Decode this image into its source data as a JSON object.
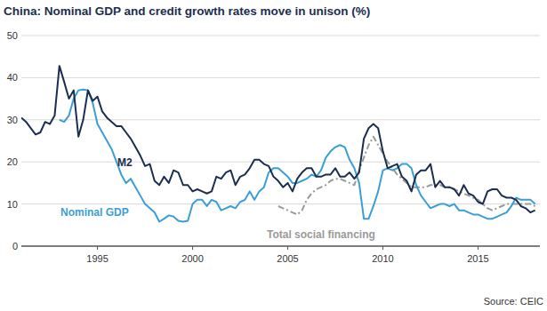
{
  "chart_data": {
    "type": "line",
    "title": "China: Nominal GDP and credit growth rates move in unison (%)",
    "source": "Source: CEIC",
    "x": [
      1991,
      1991.25,
      1991.5,
      1991.75,
      1992,
      1992.25,
      1992.5,
      1992.75,
      1993,
      1993.25,
      1993.5,
      1993.75,
      1994,
      1994.25,
      1994.5,
      1994.75,
      1995,
      1995.25,
      1995.5,
      1995.75,
      1996,
      1996.25,
      1996.5,
      1996.75,
      1997,
      1997.25,
      1997.5,
      1997.75,
      1998,
      1998.25,
      1998.5,
      1998.75,
      1999,
      1999.25,
      1999.5,
      1999.75,
      2000,
      2000.25,
      2000.5,
      2000.75,
      2001,
      2001.25,
      2001.5,
      2001.75,
      2002,
      2002.25,
      2002.5,
      2002.75,
      2003,
      2003.25,
      2003.5,
      2003.75,
      2004,
      2004.25,
      2004.5,
      2004.75,
      2005,
      2005.25,
      2005.5,
      2005.75,
      2006,
      2006.25,
      2006.5,
      2006.75,
      2007,
      2007.25,
      2007.5,
      2007.75,
      2008,
      2008.25,
      2008.5,
      2008.75,
      2009,
      2009.25,
      2009.5,
      2009.75,
      2010,
      2010.25,
      2010.5,
      2010.75,
      2011,
      2011.25,
      2011.5,
      2011.75,
      2012,
      2012.25,
      2012.5,
      2012.75,
      2013,
      2013.25,
      2013.5,
      2013.75,
      2014,
      2014.25,
      2014.5,
      2014.75,
      2015,
      2015.25,
      2015.5,
      2015.75,
      2016,
      2016.25,
      2016.5,
      2016.75,
      2017,
      2017.25,
      2017.5,
      2017.75,
      2018
    ],
    "series": [
      {
        "name": "M2",
        "color": "#1c2e4f",
        "line_style": "solid",
        "values": [
          30.5,
          29.5,
          28,
          26.5,
          27,
          29.5,
          29,
          31,
          42.8,
          39,
          35,
          37,
          26,
          30,
          37,
          34.5,
          35.5,
          32,
          30.5,
          29.5,
          28.5,
          28.5,
          27,
          25.5,
          23.5,
          21.5,
          19,
          19.5,
          15.5,
          14.5,
          16.5,
          15,
          18,
          17.5,
          14.5,
          14.5,
          13,
          13.5,
          13,
          12.5,
          13,
          16.5,
          16,
          17.5,
          18,
          14.5,
          16.5,
          17,
          18.5,
          20.5,
          20.5,
          19.5,
          19,
          16.5,
          15.5,
          14,
          15,
          13,
          16,
          17.5,
          18.5,
          18.5,
          16.5,
          16.5,
          17,
          17,
          18.5,
          16.5,
          16.5,
          17.5,
          16,
          17.5,
          25.5,
          28,
          29,
          28,
          22.5,
          18.5,
          19,
          19.5,
          16.5,
          15.5,
          13,
          17,
          18,
          18,
          19.5,
          14,
          15.5,
          14,
          14,
          13.5,
          12,
          14.5,
          12.5,
          12,
          10.5,
          10,
          13,
          13.5,
          13.5,
          12,
          11.5,
          11.5,
          11,
          9.5,
          9,
          8,
          8.5
        ]
      },
      {
        "name": "Nominal GDP",
        "color": "#3a9fd6",
        "line_style": "solid",
        "values": [
          null,
          null,
          null,
          null,
          null,
          null,
          null,
          null,
          30,
          29.5,
          31,
          35,
          37,
          37.2,
          37,
          34,
          29,
          27,
          25,
          23,
          20,
          17,
          15,
          16,
          14,
          12,
          10,
          9,
          8,
          5.8,
          6.5,
          7.3,
          7,
          6,
          5.8,
          6,
          10,
          11,
          11,
          9.5,
          11,
          10.5,
          8.5,
          9,
          9.5,
          9,
          10.5,
          11,
          13,
          11,
          13,
          14,
          17.5,
          18.5,
          18.5,
          17.5,
          16.5,
          15,
          15,
          15.5,
          16,
          17,
          16.5,
          18,
          21,
          22.5,
          23.5,
          24,
          23.5,
          20.5,
          18.5,
          15,
          6.5,
          6.5,
          9.5,
          13,
          18,
          18.5,
          18,
          18.5,
          19.5,
          19.5,
          18.5,
          14.5,
          12,
          10.5,
          9,
          9.5,
          10,
          10,
          9.5,
          10,
          8.5,
          8.5,
          8,
          7.5,
          7.5,
          7,
          6.5,
          6.5,
          7,
          7.5,
          8,
          9.5,
          11.5,
          11,
          11,
          11,
          10
        ]
      },
      {
        "name": "Total social financing",
        "color": "#9a9a9a",
        "line_style": "dashdot",
        "values": [
          null,
          null,
          null,
          null,
          null,
          null,
          null,
          null,
          null,
          null,
          null,
          null,
          null,
          null,
          null,
          null,
          null,
          null,
          null,
          null,
          null,
          null,
          null,
          null,
          null,
          null,
          null,
          null,
          null,
          null,
          null,
          null,
          null,
          null,
          null,
          null,
          null,
          null,
          null,
          null,
          null,
          null,
          null,
          null,
          null,
          null,
          null,
          null,
          null,
          null,
          null,
          null,
          null,
          null,
          9.5,
          9,
          8.5,
          8,
          7.5,
          8.5,
          11,
          12.5,
          13.5,
          14,
          14.5,
          15.5,
          16,
          16,
          15.5,
          15,
          14.5,
          18,
          21,
          24,
          26,
          24,
          22,
          20,
          18.5,
          17,
          16,
          15,
          14,
          14,
          14,
          14,
          14.5,
          14.5,
          14.5,
          14,
          14,
          13.5,
          13,
          12.5,
          12,
          11.5,
          11,
          10,
          9,
          8.5,
          9,
          9.5,
          10,
          10,
          10,
          10,
          10,
          10,
          9.5
        ]
      }
    ],
    "xlim": [
      1991,
      2018.25
    ],
    "xticks": [
      1995,
      2000,
      2005,
      2010,
      2015
    ],
    "ylim": [
      0,
      50
    ],
    "yticks": [
      0,
      10,
      20,
      30,
      40,
      50
    ],
    "grid": true
  }
}
